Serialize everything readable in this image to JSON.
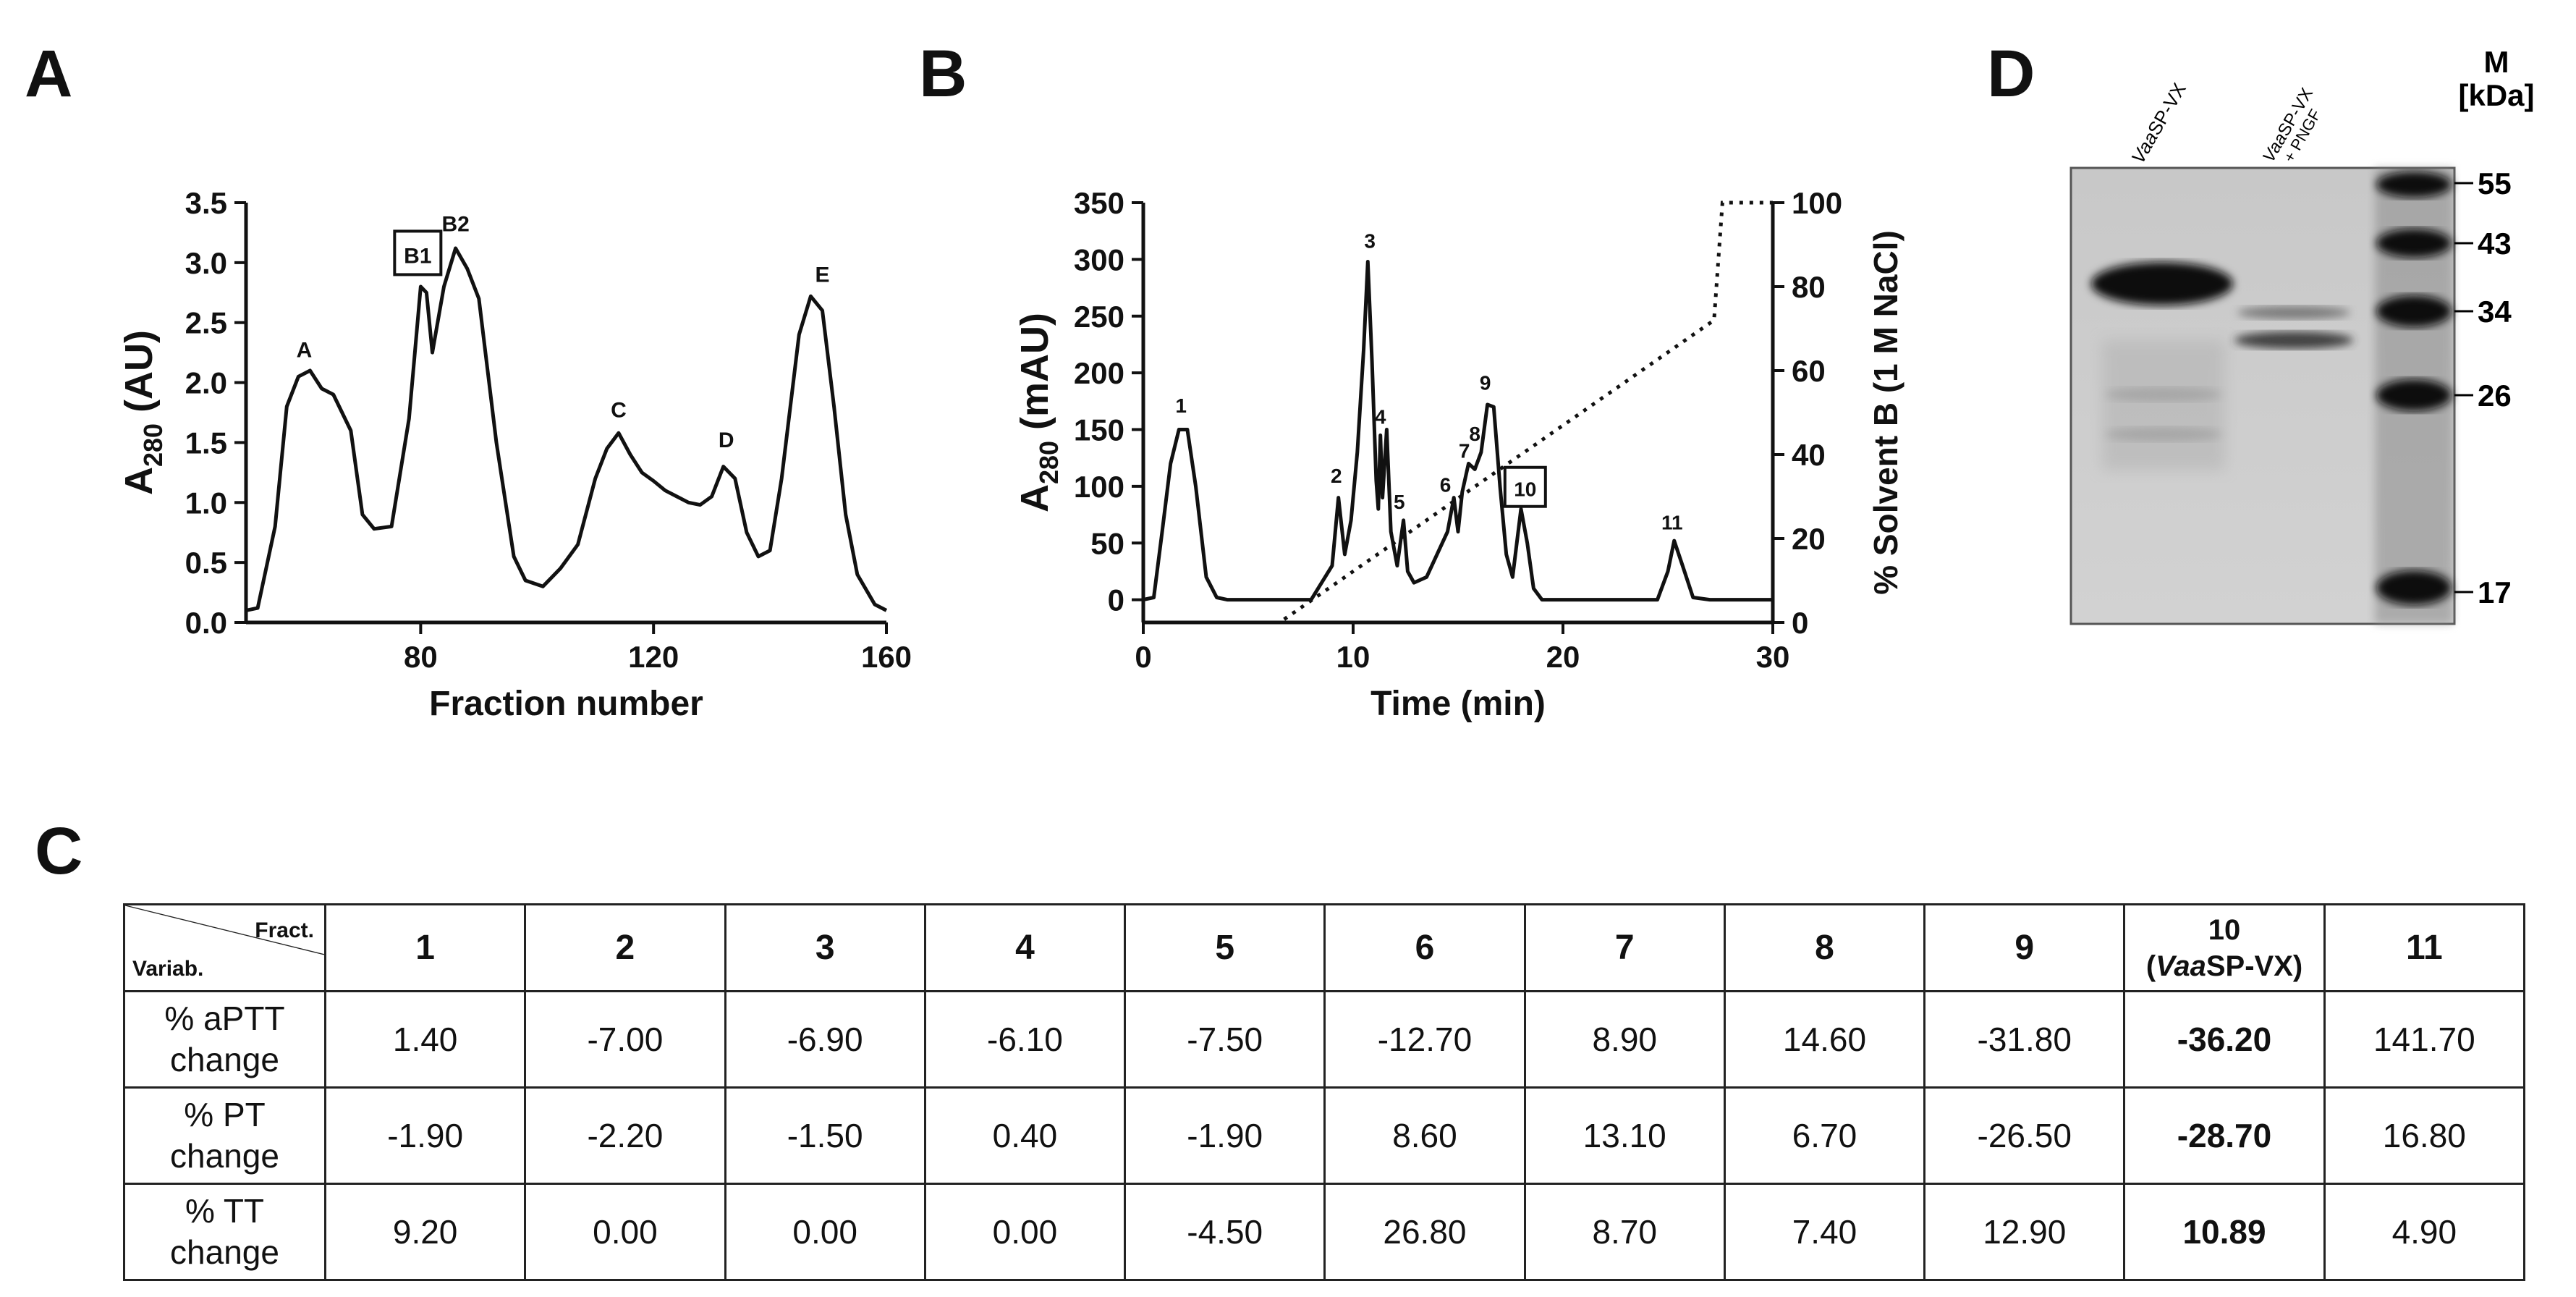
{
  "panels": {
    "A": "A",
    "B": "B",
    "C": "C",
    "D": "D"
  },
  "chart_data": [
    {
      "id": "A",
      "type": "line",
      "title": "",
      "xlabel": "Fraction number",
      "ylabel_main": "A",
      "ylabel_sub": "280",
      "ylabel_unit": " (AU)",
      "xlim": [
        50,
        160
      ],
      "ylim": [
        0,
        3.5
      ],
      "xticks": [
        80,
        120,
        160
      ],
      "yticks": [
        0.0,
        0.5,
        1.0,
        1.5,
        2.0,
        2.5,
        3.0,
        3.5
      ],
      "ytick_labels": [
        "0.0",
        "0.5",
        "1.0",
        "1.5",
        "2.0",
        "2.5",
        "3.0",
        "3.5"
      ],
      "series": [
        {
          "name": "A280",
          "x": [
            50,
            52,
            55,
            57,
            59,
            61,
            63,
            65,
            68,
            70,
            72,
            75,
            78,
            80,
            81,
            82,
            84,
            86,
            88,
            90,
            93,
            96,
            98,
            101,
            104,
            107,
            110,
            112,
            114,
            116,
            118,
            120,
            122,
            124,
            126,
            128,
            130,
            132,
            134,
            136,
            138,
            140,
            142,
            145,
            147,
            149,
            151,
            153,
            155,
            158,
            160
          ],
          "y": [
            0.1,
            0.12,
            0.8,
            1.8,
            2.05,
            2.1,
            1.95,
            1.9,
            1.6,
            0.9,
            0.78,
            0.8,
            1.7,
            2.8,
            2.75,
            2.25,
            2.8,
            3.12,
            2.95,
            2.7,
            1.5,
            0.55,
            0.35,
            0.3,
            0.45,
            0.65,
            1.2,
            1.45,
            1.58,
            1.4,
            1.25,
            1.18,
            1.1,
            1.05,
            1.0,
            0.98,
            1.05,
            1.3,
            1.2,
            0.75,
            0.55,
            0.6,
            1.2,
            2.4,
            2.72,
            2.6,
            1.8,
            0.9,
            0.4,
            0.15,
            0.1
          ]
        }
      ],
      "annotations": [
        {
          "label": "A",
          "x": 60,
          "y": 2.15,
          "boxed": false
        },
        {
          "label": "B1",
          "x": 79.5,
          "y": 2.9,
          "boxed": true
        },
        {
          "label": "B2",
          "x": 86,
          "y": 3.2,
          "boxed": false
        },
        {
          "label": "C",
          "x": 114,
          "y": 1.65,
          "boxed": false
        },
        {
          "label": "D",
          "x": 132.5,
          "y": 1.4,
          "boxed": false
        },
        {
          "label": "E",
          "x": 149,
          "y": 2.78,
          "boxed": false
        }
      ]
    },
    {
      "id": "B",
      "type": "line",
      "title": "",
      "xlabel": "Time (min)",
      "ylabel_main": "A",
      "ylabel_sub": "280",
      "ylabel_unit": " (mAU)",
      "y2label": "% Solvent B (1 M NaCl)",
      "xlim": [
        0,
        30
      ],
      "ylim": [
        -20,
        350
      ],
      "y2lim": [
        0,
        100
      ],
      "xticks": [
        0,
        10,
        20,
        30
      ],
      "yticks": [
        0,
        50,
        100,
        150,
        200,
        250,
        300,
        350
      ],
      "y2ticks": [
        0,
        20,
        40,
        60,
        80,
        100
      ],
      "series": [
        {
          "name": "A280 (mAU)",
          "x": [
            0,
            0.5,
            0.9,
            1.3,
            1.7,
            2.1,
            2.5,
            3.0,
            3.5,
            4.0,
            6.0,
            8.0,
            9.0,
            9.3,
            9.6,
            9.9,
            10.2,
            10.5,
            10.7,
            10.9,
            11.1,
            11.2,
            11.3,
            11.4,
            11.6,
            11.8,
            12.1,
            12.4,
            12.6,
            12.9,
            13.5,
            14.0,
            14.5,
            14.8,
            15.0,
            15.2,
            15.5,
            15.8,
            16.1,
            16.4,
            16.7,
            17.0,
            17.3,
            17.6,
            18.0,
            18.3,
            18.6,
            19.0,
            20.0,
            22.0,
            24.5,
            25.0,
            25.3,
            25.7,
            26.2,
            27.0,
            28.0,
            30.0
          ],
          "y": [
            0,
            2,
            60,
            120,
            150,
            150,
            100,
            20,
            2,
            0,
            0,
            0,
            30,
            90,
            40,
            70,
            130,
            220,
            298,
            210,
            105,
            80,
            145,
            90,
            150,
            60,
            30,
            70,
            25,
            15,
            20,
            40,
            60,
            90,
            60,
            95,
            120,
            115,
            130,
            172,
            170,
            100,
            40,
            20,
            80,
            50,
            10,
            0,
            0,
            0,
            0,
            25,
            52,
            30,
            2,
            0,
            0,
            0
          ]
        },
        {
          "name": "% Solvent B",
          "axis": "y2",
          "x": [
            0,
            6.5,
            27.2,
            27.6,
            30
          ],
          "y": [
            0,
            0,
            72,
            100,
            100
          ]
        }
      ],
      "annotations": [
        {
          "label": "1",
          "x": 1.8,
          "y": 165
        },
        {
          "label": "2",
          "x": 9.2,
          "y": 103
        },
        {
          "label": "3",
          "x": 10.8,
          "y": 310
        },
        {
          "label": "4",
          "x": 11.3,
          "y": 155
        },
        {
          "label": "5",
          "x": 12.2,
          "y": 80
        },
        {
          "label": "6",
          "x": 14.4,
          "y": 95
        },
        {
          "label": "7",
          "x": 15.3,
          "y": 125
        },
        {
          "label": "8",
          "x": 15.8,
          "y": 140
        },
        {
          "label": "9",
          "x": 16.3,
          "y": 185
        },
        {
          "label": "10",
          "x": 18.2,
          "y": 95,
          "boxed": true
        },
        {
          "label": "11",
          "x": 25.2,
          "y": 62
        }
      ]
    }
  ],
  "gel": {
    "lanes": [
      {
        "label_italic": "Vaa",
        "label_rest": "SP-VX"
      },
      {
        "label_italic": "Vaa",
        "label_rest": "SP-VX",
        "label_line2": "+ PNGF"
      }
    ],
    "marker_label": "M",
    "unit_label": "[kDa]",
    "markers": [
      "55",
      "43",
      "34",
      "26",
      "17"
    ]
  },
  "table": {
    "corner_top": "Fract.",
    "corner_bottom": "Variab.",
    "columns": [
      "1",
      "2",
      "3",
      "4",
      "5",
      "6",
      "7",
      "8",
      "9",
      "10",
      "11"
    ],
    "col10_sub_open": "(",
    "col10_sub_italic": "Vaa",
    "col10_sub_rest": "SP-VX)",
    "rows": [
      {
        "label_line1": "% aPTT",
        "label_line2": "change",
        "values": [
          "1.40",
          "-7.00",
          "-6.90",
          "-6.10",
          "-7.50",
          "-12.70",
          "8.90",
          "14.60",
          "-31.80",
          "-36.20",
          "141.70"
        ]
      },
      {
        "label_line1": "% PT",
        "label_line2": "change",
        "values": [
          "-1.90",
          "-2.20",
          "-1.50",
          "0.40",
          "-1.90",
          "8.60",
          "13.10",
          "6.70",
          "-26.50",
          "-28.70",
          "16.80"
        ]
      },
      {
        "label_line1": "% TT",
        "label_line2": "change",
        "values": [
          "9.20",
          "0.00",
          "0.00",
          "0.00",
          "-4.50",
          "26.80",
          "8.70",
          "7.40",
          "12.90",
          "10.89",
          "4.90"
        ]
      }
    ]
  }
}
